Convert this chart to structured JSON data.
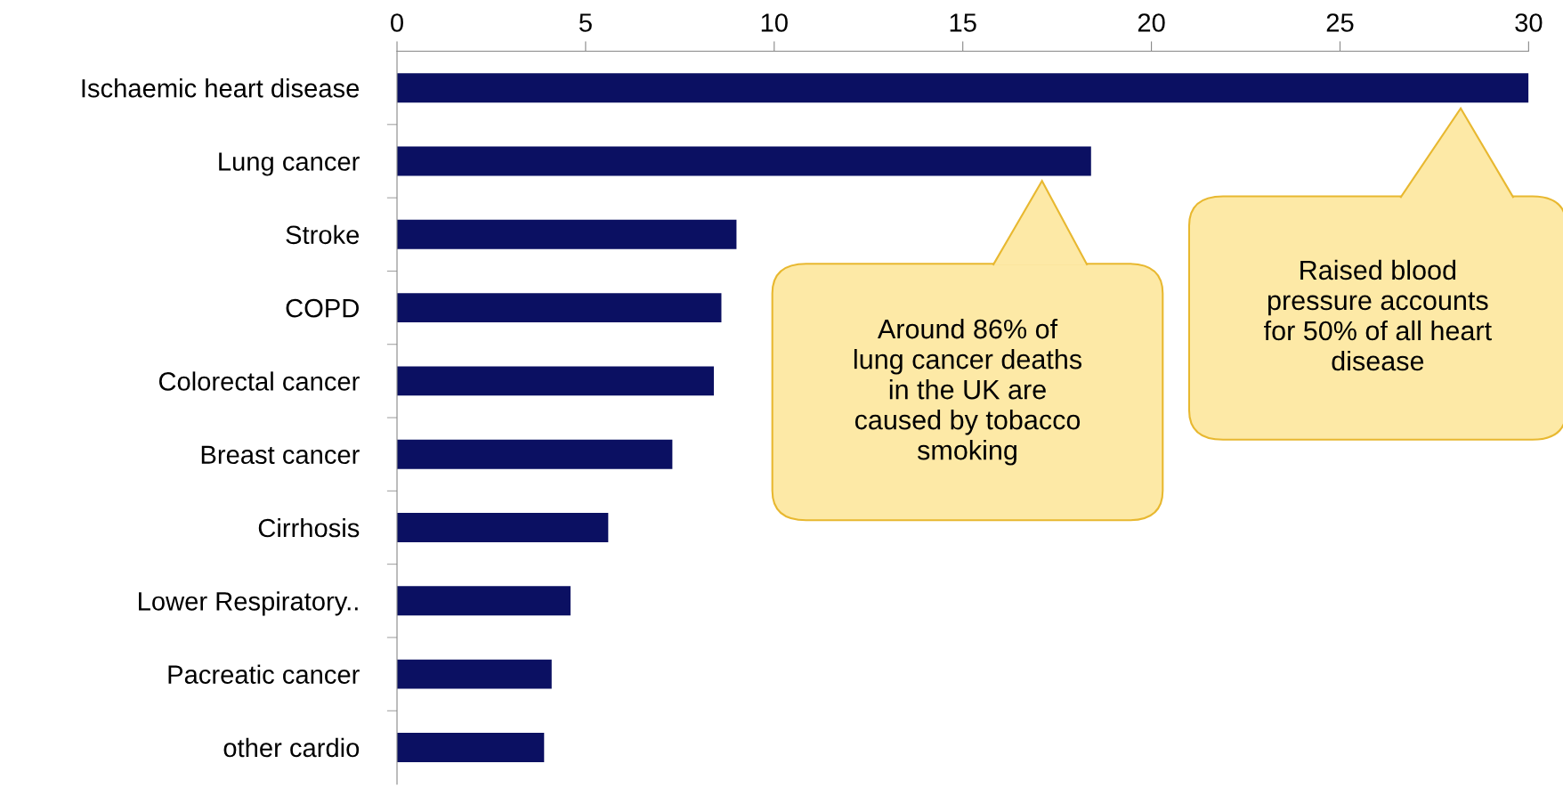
{
  "chart_data": {
    "type": "bar",
    "orientation": "horizontal",
    "categories": [
      "Ischaemic heart disease",
      "Lung cancer",
      "Stroke",
      "COPD",
      "Colorectal cancer",
      "Breast cancer",
      "Cirrhosis",
      "Lower Respiratory..",
      "Pacreatic cancer",
      "other cardio"
    ],
    "values": [
      30.0,
      18.4,
      9.0,
      8.6,
      8.4,
      7.3,
      5.6,
      4.6,
      4.1,
      3.9
    ],
    "color": "#0b1062",
    "xlim": [
      0,
      30
    ],
    "xticks": [
      0,
      5,
      10,
      15,
      20,
      25,
      30
    ],
    "grid": false,
    "legend": false,
    "annotations": [
      "Around 86% of\nlung cancer deaths\nin the UK are\ncaused by tobacco\nsmoking",
      "Raised blood\npressure accounts\nfor 50% of all heart\ndisease"
    ]
  }
}
